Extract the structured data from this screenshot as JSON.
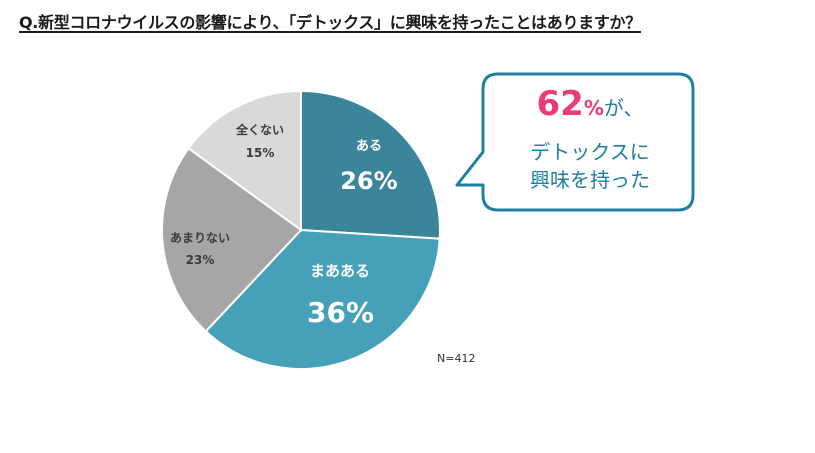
{
  "title": "Q.新型コロナウイルスの影響により、「デトックス」に興味を持ったことはありますか？",
  "chart_data": {
    "type": "pie",
    "title": "Q.新型コロナウイルスの影響により、「デトックス」に興味を持ったことはありますか？",
    "categories": [
      "ある",
      "まあある",
      "あまりない",
      "全くない"
    ],
    "values": [
      26,
      36,
      23,
      15
    ],
    "unit": "%",
    "colors": [
      "#3a8599",
      "#46a0b8",
      "#a6a6a6",
      "#d9d9d9"
    ],
    "start_angle": "12 o'clock, clockwise",
    "sample_size": "N=412",
    "annotation": "62%が、デトックスに興味を持った"
  },
  "slices": [
    {
      "label": "ある",
      "value": "26%"
    },
    {
      "label": "まあある",
      "value": "36%"
    },
    {
      "label": "あまりない",
      "value": "23%"
    },
    {
      "label": "全くない",
      "value": "15%"
    }
  ],
  "sample_size": "N=412",
  "callout": {
    "percent_number": "62",
    "percent_sign": "%",
    "line1_suffix": "が、",
    "line2": "デトックスに",
    "line3": "興味を持った",
    "border_color": "#1f7fa0",
    "highlight_color": "#ee3a78"
  }
}
